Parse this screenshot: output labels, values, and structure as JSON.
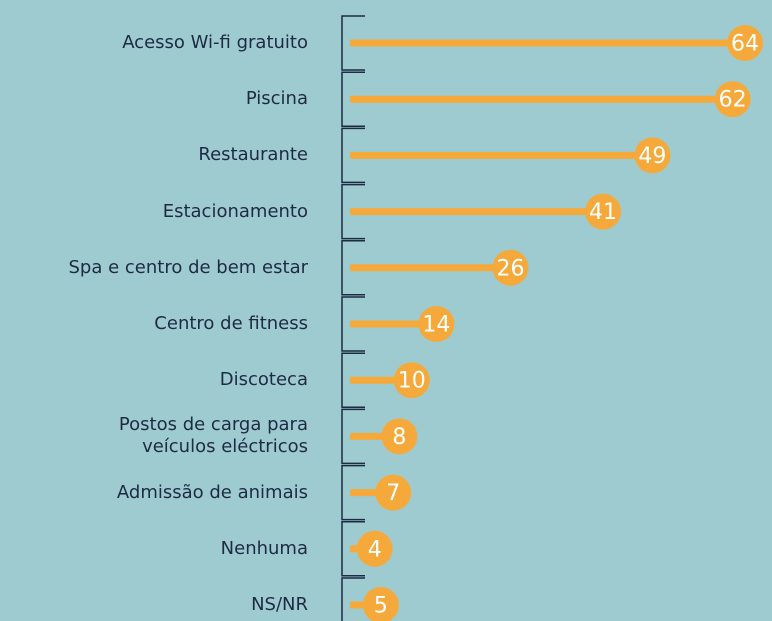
{
  "chart_data": {
    "type": "lollipop",
    "categories": [
      "Acesso Wi-fi gratuito",
      "Piscina",
      "Restaurante",
      "Estacionamento",
      "Spa e centro de bem estar",
      "Centro de fitness",
      "Discoteca",
      "Postos de carga para\nveículos eléctricos",
      "Admissão de animais",
      "Nenhuma",
      "NS/NR"
    ],
    "values": [
      64,
      62,
      49,
      41,
      26,
      14,
      10,
      8,
      7,
      4,
      5
    ],
    "color": "#f6a93b"
  }
}
